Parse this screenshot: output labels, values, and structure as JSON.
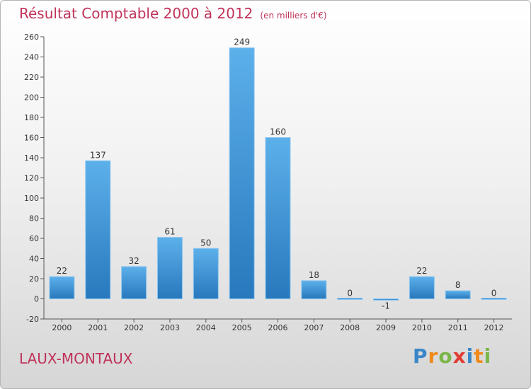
{
  "title": "Résultat Comptable 2000 à 2012",
  "subtitle": "(en milliers d'€)",
  "town": "LAUX-MONTAUX",
  "logo": {
    "text": "Proxiti",
    "colors": [
      "#3a86c8",
      "#f08a1c",
      "#7ab648",
      "#e23b33"
    ]
  },
  "chart_data": {
    "type": "bar",
    "title": "Résultat Comptable 2000 à 2012",
    "subtitle": "(en milliers d'€)",
    "xlabel": "",
    "ylabel": "",
    "categories": [
      "2000",
      "2001",
      "2002",
      "2003",
      "2004",
      "2005",
      "2006",
      "2007",
      "2008",
      "2009",
      "2010",
      "2011",
      "2012"
    ],
    "values": [
      22,
      137,
      32,
      61,
      50,
      249,
      160,
      18,
      0,
      -1,
      22,
      8,
      0
    ],
    "ylim": [
      -20,
      260
    ],
    "yticks": [
      -20,
      0,
      20,
      40,
      60,
      80,
      100,
      120,
      140,
      160,
      180,
      200,
      220,
      240,
      260
    ],
    "grid": false,
    "bar_color": "#3d93d9"
  }
}
